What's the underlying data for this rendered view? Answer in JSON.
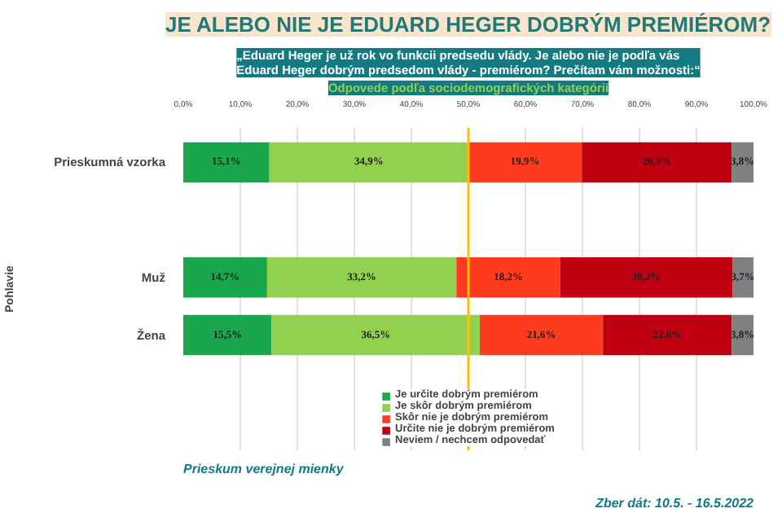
{
  "chart_data": {
    "type": "bar",
    "orientation": "horizontal",
    "stacked": true,
    "title": "JE ALEBO NIE JE EDUARD HEGER DOBRÝM PREMIÉROM?",
    "subtitle": "„Eduard Heger je už rok vo funkcii predsedu vlády. Je alebo nie je podľa vás Eduard Heger dobrým predsedom vlády - premiérom? Prečítam vám možnosti:“",
    "annotations": [
      "Odpovede podľa sociodemografických kategórií",
      "Pohlavie",
      "Prieskum verejnej mienky",
      "Zber dát: 10.5. - 16.5.2022"
    ],
    "categories": [
      "Prieskumná vzorka",
      null,
      "Muž",
      "Žena"
    ],
    "series": [
      {
        "name": "Je určite dobrým premiérom",
        "color": "#1aa64a",
        "values": [
          15.1,
          null,
          14.7,
          15.5
        ],
        "value_labels": [
          "15,1%",
          null,
          "14,7%",
          "15,5%"
        ]
      },
      {
        "name": "Je skôr dobrým premiérom",
        "color": "#92d050",
        "values": [
          34.9,
          null,
          33.2,
          36.5
        ],
        "value_labels": [
          "34,9%",
          null,
          "33,2%",
          "36,5%"
        ]
      },
      {
        "name": "Skôr nie je dobrým premiérom",
        "color": "#ff3a1e",
        "values": [
          19.9,
          null,
          18.2,
          21.6
        ],
        "value_labels": [
          "19,9%",
          null,
          "18,2%",
          "21,6%"
        ]
      },
      {
        "name": "Určite nie je dobrým premiérom",
        "color": "#c00010",
        "values": [
          26.3,
          null,
          30.2,
          22.6
        ],
        "value_labels": [
          "26,3%",
          null,
          "30,2%",
          "22,6%"
        ]
      },
      {
        "name": "Neviem / nechcem odpovedať",
        "color": "#808080",
        "values": [
          3.8,
          null,
          3.7,
          3.8
        ],
        "value_labels": [
          "3,8%",
          null,
          "3,7%",
          "3,8%"
        ]
      }
    ],
    "xlim": [
      0,
      100
    ],
    "xticks": [
      {
        "value": 0,
        "label": "0,0%"
      },
      {
        "value": 10,
        "label": "10,0%"
      },
      {
        "value": 20,
        "label": "20,0%"
      },
      {
        "value": 30,
        "label": "30,0%"
      },
      {
        "value": 40,
        "label": "40,0%"
      },
      {
        "value": 50,
        "label": "50,0%"
      },
      {
        "value": 60,
        "label": "60,0%"
      },
      {
        "value": 70,
        "label": "70,0%"
      },
      {
        "value": 80,
        "label": "80,0%"
      },
      {
        "value": 90,
        "label": "90,0%"
      },
      {
        "value": 100,
        "label": "100,0%"
      }
    ],
    "ref_lines": [
      {
        "axis": "x",
        "value": 50,
        "color": "#ffc000"
      }
    ],
    "grid": "x",
    "legend": "bottom"
  }
}
